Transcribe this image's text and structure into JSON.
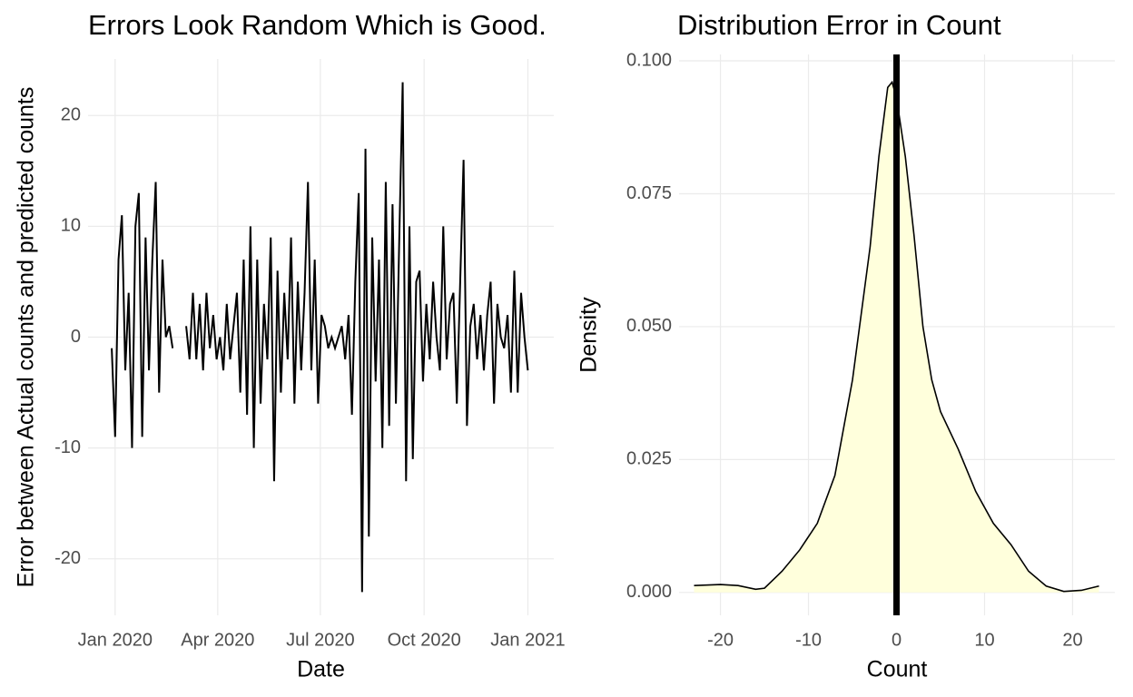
{
  "chart_data": [
    {
      "type": "line",
      "title": "Errors Look Random Which is Good.",
      "x_label": "Date",
      "y_label": "Error between Actual counts and predicted counts",
      "color": "#000000",
      "grid": true,
      "x": [
        -3,
        0,
        3,
        6,
        9,
        12,
        15,
        18,
        21,
        24,
        27,
        30,
        33,
        36,
        39,
        42,
        45,
        48,
        51,
        54,
        57,
        60,
        63,
        66,
        69,
        72,
        75,
        78,
        81,
        84,
        87,
        90,
        93,
        96,
        99,
        102,
        105,
        108,
        111,
        114,
        117,
        120,
        123,
        126,
        129,
        132,
        135,
        138,
        141,
        144,
        147,
        150,
        153,
        156,
        159,
        162,
        165,
        168,
        171,
        174,
        177,
        180,
        183,
        186,
        189,
        192,
        195,
        198,
        201,
        204,
        207,
        210,
        213,
        216,
        219,
        222,
        225,
        228,
        231,
        234,
        237,
        240,
        243,
        246,
        249,
        252,
        255,
        258,
        261,
        264,
        267,
        270,
        273,
        276,
        279,
        282,
        285,
        288,
        291,
        294,
        297,
        300,
        303,
        306,
        309,
        312,
        315,
        318,
        321,
        324,
        327,
        330,
        333,
        336,
        339,
        342,
        345,
        348,
        351,
        354,
        357,
        360,
        363,
        366
      ],
      "values": [
        -1,
        -9,
        7,
        11,
        -3,
        4,
        -10,
        10,
        13,
        -9,
        9,
        -3,
        7,
        14,
        -5,
        7,
        0,
        1,
        -1,
        null,
        null,
        null,
        1,
        -2,
        4,
        -2,
        3,
        -3,
        4,
        -1,
        2,
        -2,
        0,
        -3,
        3,
        -2,
        1,
        4,
        -5,
        7,
        -7,
        10,
        -10,
        7,
        -6,
        3,
        -2,
        9,
        -13,
        6,
        -5,
        4,
        -2,
        9,
        -6,
        5,
        -3,
        4,
        14,
        -3,
        7,
        -6,
        2,
        1,
        -1,
        0,
        -1,
        0,
        1,
        -2,
        2,
        -7,
        5,
        13,
        -23,
        17,
        -18,
        9,
        -4,
        7,
        -10,
        14,
        -8,
        12,
        -6,
        9,
        23,
        -13,
        10,
        -11,
        5,
        6,
        -4,
        3,
        -2,
        5,
        0,
        -3,
        10,
        -2,
        3,
        4,
        -6,
        5,
        16,
        -8,
        1,
        3,
        -2,
        2,
        -3,
        2,
        5,
        -6,
        3,
        0,
        -1,
        2,
        -5,
        6,
        -5,
        4,
        0,
        -3
      ],
      "xlim": [
        -24,
        389
      ],
      "xticks": [
        {
          "value": 0,
          "label": "Jan 2020"
        },
        {
          "value": 91,
          "label": "Apr 2020"
        },
        {
          "value": 182,
          "label": "Jul 2020"
        },
        {
          "value": 274,
          "label": "Oct 2020"
        },
        {
          "value": 366,
          "label": "Jan 2021"
        }
      ],
      "ylim": [
        -25.1,
        25.1
      ],
      "yticks": [
        -20,
        -10,
        0,
        10,
        20
      ]
    },
    {
      "type": "area",
      "title": "Distribution Error in Count",
      "x_label": "Count",
      "y_label": "Density",
      "color": "#ffffdc",
      "line_color": "#000000",
      "grid": true,
      "vline": 0,
      "x": [
        -23,
        -20,
        -18,
        -16,
        -15,
        -13,
        -11,
        -9,
        -7,
        -5,
        -3,
        -2,
        -1,
        -0.5,
        0,
        1,
        2,
        3,
        4,
        5,
        7,
        9,
        11,
        13,
        15,
        17,
        19,
        21,
        23
      ],
      "values": [
        0.0013,
        0.0015,
        0.0013,
        0.0006,
        0.0008,
        0.004,
        0.008,
        0.013,
        0.022,
        0.04,
        0.065,
        0.082,
        0.095,
        0.096,
        0.093,
        0.082,
        0.067,
        0.05,
        0.04,
        0.034,
        0.027,
        0.019,
        0.013,
        0.009,
        0.004,
        0.0012,
        0.0002,
        0.0004,
        0.0012
      ],
      "xlim": [
        -24.7,
        24.8
      ],
      "xticks": [
        -20,
        -10,
        0,
        10,
        20
      ],
      "ylim": [
        -0.0043,
        0.1012
      ],
      "yticks": [
        {
          "value": 0,
          "label": "0.000"
        },
        {
          "value": 0.025,
          "label": "0.025"
        },
        {
          "value": 0.05,
          "label": "0.050"
        },
        {
          "value": 0.075,
          "label": "0.075"
        },
        {
          "value": 0.1,
          "label": "0.100"
        }
      ]
    }
  ]
}
